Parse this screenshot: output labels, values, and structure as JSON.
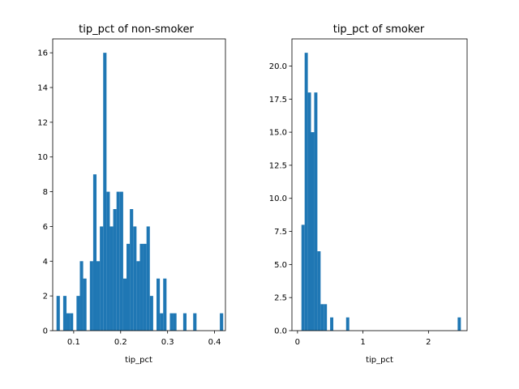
{
  "colors": {
    "bar": "#1f77b4",
    "axis": "#000000",
    "background": "#ffffff"
  },
  "chart_data": [
    {
      "type": "bar",
      "title": "tip_pct of non-smoker",
      "xlabel": "tip_pct",
      "ylabel": "",
      "xlim": [
        0.0553,
        0.4232
      ],
      "ylim": [
        0,
        16.8
      ],
      "grid": false,
      "bin_width": 0.0071,
      "xticks": [
        0.1,
        0.2,
        0.3,
        0.4
      ],
      "xtick_labels": [
        "0.1",
        "0.2",
        "0.3",
        "0.4"
      ],
      "yticks": [
        0,
        2,
        4,
        6,
        8,
        10,
        12,
        14,
        16
      ],
      "ytick_labels": [
        "0",
        "2",
        "4",
        "6",
        "8",
        "10",
        "12",
        "14",
        "16"
      ],
      "bins": [
        {
          "x": 0.0634,
          "y": 2
        },
        {
          "x": 0.0705,
          "y": 0
        },
        {
          "x": 0.0776,
          "y": 2
        },
        {
          "x": 0.0847,
          "y": 1
        },
        {
          "x": 0.0918,
          "y": 1
        },
        {
          "x": 0.0989,
          "y": 0
        },
        {
          "x": 0.106,
          "y": 2
        },
        {
          "x": 0.1131,
          "y": 4
        },
        {
          "x": 0.1202,
          "y": 3
        },
        {
          "x": 0.1273,
          "y": 0
        },
        {
          "x": 0.1344,
          "y": 4
        },
        {
          "x": 0.1415,
          "y": 9
        },
        {
          "x": 0.1486,
          "y": 4
        },
        {
          "x": 0.1557,
          "y": 6
        },
        {
          "x": 0.1628,
          "y": 16
        },
        {
          "x": 0.1699,
          "y": 8
        },
        {
          "x": 0.177,
          "y": 6
        },
        {
          "x": 0.1841,
          "y": 7
        },
        {
          "x": 0.1912,
          "y": 8
        },
        {
          "x": 0.1983,
          "y": 8
        },
        {
          "x": 0.2054,
          "y": 3
        },
        {
          "x": 0.2125,
          "y": 5
        },
        {
          "x": 0.2196,
          "y": 7
        },
        {
          "x": 0.2267,
          "y": 6
        },
        {
          "x": 0.2338,
          "y": 4
        },
        {
          "x": 0.2409,
          "y": 5
        },
        {
          "x": 0.248,
          "y": 5
        },
        {
          "x": 0.2551,
          "y": 6
        },
        {
          "x": 0.2622,
          "y": 2
        },
        {
          "x": 0.2693,
          "y": 0
        },
        {
          "x": 0.2764,
          "y": 3
        },
        {
          "x": 0.2835,
          "y": 1
        },
        {
          "x": 0.2906,
          "y": 3
        },
        {
          "x": 0.2977,
          "y": 0
        },
        {
          "x": 0.3048,
          "y": 1
        },
        {
          "x": 0.3119,
          "y": 1
        },
        {
          "x": 0.319,
          "y": 0
        },
        {
          "x": 0.3261,
          "y": 0
        },
        {
          "x": 0.3332,
          "y": 1
        },
        {
          "x": 0.3403,
          "y": 0
        },
        {
          "x": 0.3474,
          "y": 0
        },
        {
          "x": 0.3545,
          "y": 1
        },
        {
          "x": 0.3616,
          "y": 0
        },
        {
          "x": 0.3687,
          "y": 0
        },
        {
          "x": 0.3758,
          "y": 0
        },
        {
          "x": 0.3829,
          "y": 0
        },
        {
          "x": 0.39,
          "y": 0
        },
        {
          "x": 0.3971,
          "y": 0
        },
        {
          "x": 0.4042,
          "y": 0
        },
        {
          "x": 0.4113,
          "y": 1
        }
      ]
    },
    {
      "type": "bar",
      "title": "tip_pct of smoker",
      "xlabel": "tip_pct",
      "ylabel": "",
      "xlim": [
        -0.085,
        2.59
      ],
      "ylim": [
        0,
        22.05
      ],
      "grid": false,
      "bin_width": 0.0487,
      "xticks": [
        0,
        1,
        2
      ],
      "xtick_labels": [
        "0",
        "1",
        "2"
      ],
      "yticks": [
        0,
        2.5,
        5,
        7.5,
        10,
        12.5,
        15,
        17.5,
        20
      ],
      "ytick_labels": [
        "0.0",
        "2.5",
        "5.0",
        "7.5",
        "10.0",
        "12.5",
        "15.0",
        "17.5",
        "20.0"
      ],
      "bins": [
        {
          "x": 0.06,
          "y": 8
        },
        {
          "x": 0.109,
          "y": 21
        },
        {
          "x": 0.158,
          "y": 18
        },
        {
          "x": 0.206,
          "y": 15
        },
        {
          "x": 0.255,
          "y": 18
        },
        {
          "x": 0.304,
          "y": 6
        },
        {
          "x": 0.352,
          "y": 2
        },
        {
          "x": 0.401,
          "y": 2
        },
        {
          "x": 0.45,
          "y": 0
        },
        {
          "x": 0.498,
          "y": 1
        },
        {
          "x": 0.547,
          "y": 0
        },
        {
          "x": 0.596,
          "y": 0
        },
        {
          "x": 0.644,
          "y": 0
        },
        {
          "x": 0.693,
          "y": 0
        },
        {
          "x": 0.742,
          "y": 1
        },
        {
          "x": 2.446,
          "y": 1
        }
      ]
    }
  ]
}
